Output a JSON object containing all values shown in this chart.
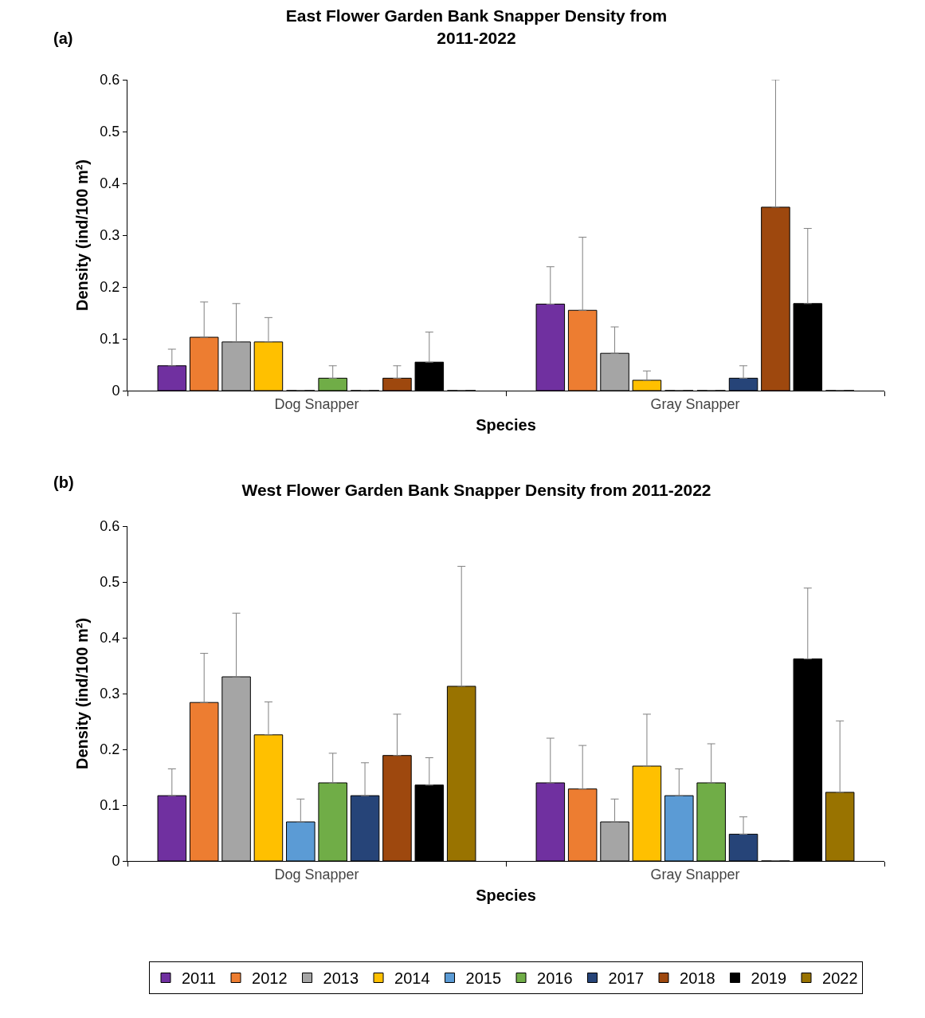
{
  "chart_data": [
    {
      "type": "bar",
      "title": "East Flower Garden Bank Snapper Density from\n2011-2022",
      "xlabel": "Species",
      "ylabel": "Density (ind/100 m²)",
      "annotations": [
        "(a)"
      ],
      "categories": [
        "Dog Snapper",
        "Gray Snapper"
      ],
      "ylim": [
        0,
        0.6
      ],
      "yticks": [
        0,
        0.1,
        0.2,
        0.3,
        0.4,
        0.5,
        0.6
      ],
      "grid": false,
      "legend": false,
      "series": [
        {
          "color": "#7030a0",
          "values": [
            0.048,
            0.167
          ],
          "errors": [
            [
              0.048,
              0.08
            ],
            [
              0.167,
              0.239
            ]
          ]
        },
        {
          "color": "#ed7d31",
          "values": [
            0.103,
            0.155
          ],
          "errors": [
            [
              0.103,
              0.171
            ],
            [
              0.155,
              0.296
            ]
          ]
        },
        {
          "color": "#a5a5a5",
          "values": [
            0.094,
            0.072
          ],
          "errors": [
            [
              0.094,
              0.168
            ],
            [
              0.072,
              0.123
            ]
          ]
        },
        {
          "color": "#ffc000",
          "values": [
            0.094,
            0.02
          ],
          "errors": [
            [
              0.094,
              0.141
            ],
            [
              0.02,
              0.038
            ]
          ]
        },
        {
          "color": "#5b9bd5",
          "values": [
            0,
            0
          ],
          "errors": [
            null,
            null
          ]
        },
        {
          "color": "#70ad47",
          "values": [
            0.024,
            0
          ],
          "errors": [
            [
              0.024,
              0.048
            ],
            null
          ]
        },
        {
          "color": "#264478",
          "values": [
            0,
            0.024
          ],
          "errors": [
            null,
            [
              0.024,
              0.048
            ]
          ]
        },
        {
          "color": "#9e480e",
          "values": [
            0.024,
            0.354
          ],
          "errors": [
            [
              0.024,
              0.048
            ],
            [
              0.354,
              0.6
            ]
          ]
        },
        {
          "color": "#000000",
          "values": [
            0.055,
            0.168
          ],
          "errors": [
            [
              0.055,
              0.113
            ],
            [
              0.168,
              0.313
            ]
          ]
        },
        {
          "color": "#997300",
          "values": [
            0,
            0
          ],
          "errors": [
            null,
            null
          ]
        }
      ]
    },
    {
      "type": "bar",
      "title": "West Flower Garden Bank Snapper Density from 2011-2022",
      "xlabel": "Species",
      "ylabel": "Density (ind/100 m²)",
      "annotations": [
        "(b)"
      ],
      "categories": [
        "Dog Snapper",
        "Gray Snapper"
      ],
      "ylim": [
        0,
        0.6
      ],
      "yticks": [
        0,
        0.1,
        0.2,
        0.3,
        0.4,
        0.5,
        0.6
      ],
      "grid": false,
      "legend": "bottom",
      "series": [
        {
          "name": "2011",
          "color": "#7030a0",
          "values": [
            0.117,
            0.14
          ],
          "errors": [
            [
              0.117,
              0.165
            ],
            [
              0.14,
              0.22
            ]
          ]
        },
        {
          "name": "2012",
          "color": "#ed7d31",
          "values": [
            0.284,
            0.129
          ],
          "errors": [
            [
              0.284,
              0.372
            ],
            [
              0.129,
              0.207
            ]
          ]
        },
        {
          "name": "2013",
          "color": "#a5a5a5",
          "values": [
            0.33,
            0.07
          ],
          "errors": [
            [
              0.33,
              0.444
            ],
            [
              0.07,
              0.111
            ]
          ]
        },
        {
          "name": "2014",
          "color": "#ffc000",
          "values": [
            0.226,
            0.17
          ],
          "errors": [
            [
              0.226,
              0.285
            ],
            [
              0.17,
              0.263
            ]
          ]
        },
        {
          "name": "2015",
          "color": "#5b9bd5",
          "values": [
            0.07,
            0.117
          ],
          "errors": [
            [
              0.07,
              0.111
            ],
            [
              0.117,
              0.165
            ]
          ]
        },
        {
          "name": "2016",
          "color": "#70ad47",
          "values": [
            0.14,
            0.14
          ],
          "errors": [
            [
              0.14,
              0.193
            ],
            [
              0.14,
              0.21
            ]
          ]
        },
        {
          "name": "2017",
          "color": "#264478",
          "values": [
            0.117,
            0.048
          ],
          "errors": [
            [
              0.117,
              0.176
            ],
            [
              0.048,
              0.079
            ]
          ]
        },
        {
          "name": "2018",
          "color": "#9e480e",
          "values": [
            0.189,
            0
          ],
          "errors": [
            [
              0.189,
              0.263
            ],
            null
          ]
        },
        {
          "name": "2019",
          "color": "#000000",
          "values": [
            0.136,
            0.362
          ],
          "errors": [
            [
              0.136,
              0.185
            ],
            [
              0.362,
              0.489
            ]
          ]
        },
        {
          "name": "2022",
          "color": "#997300",
          "values": [
            0.313,
            0.123
          ],
          "errors": [
            [
              0.313,
              0.528
            ],
            [
              0.123,
              0.251
            ]
          ]
        }
      ]
    }
  ]
}
